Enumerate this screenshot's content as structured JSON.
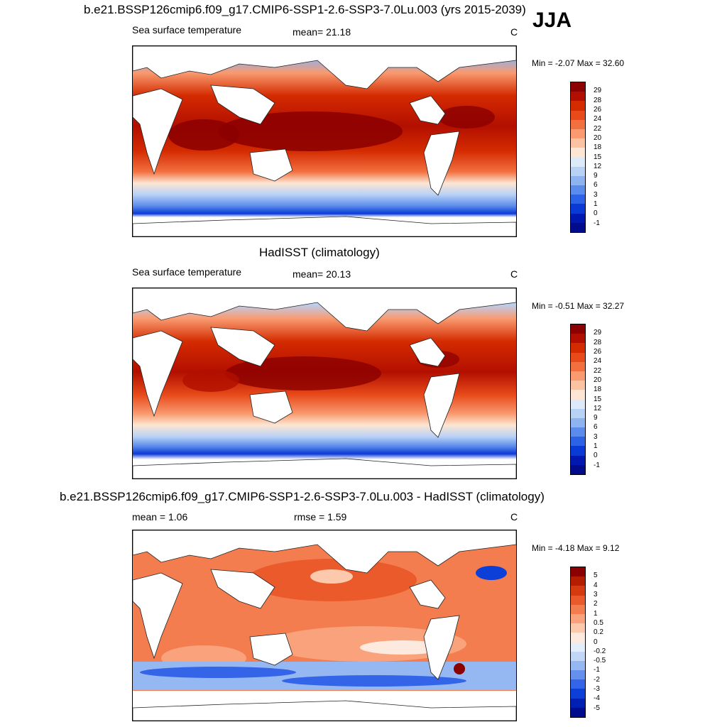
{
  "season": "JJA",
  "panels": [
    {
      "title": "b.e21.BSSP126cmip6.f09_g17.CMIP6-SSP1-2.6-SSP3-7.0Lu.003 (yrs 2015-2039)",
      "left_label": "Sea surface temperature",
      "center_label": "mean=  21.18",
      "unit": "C",
      "minmax": "Min =  -2.07 Max =  32.60",
      "colorbar_labels": [
        "29",
        "28",
        "26",
        "24",
        "22",
        "20",
        "18",
        "15",
        "12",
        "9",
        "6",
        "3",
        "1",
        "0",
        "-1"
      ],
      "colorbar_colors": [
        "#8b0000",
        "#b30f00",
        "#d42b00",
        "#e84a1a",
        "#f2703f",
        "#f99a70",
        "#fcc3a3",
        "#fde6d3",
        "#dceafa",
        "#b8d2f6",
        "#8db3f0",
        "#5b8ceb",
        "#2c62e6",
        "#0a3ad6",
        "#0018b0",
        "#000c8c"
      ]
    },
    {
      "title": "HadISST (climatology)",
      "left_label": "Sea surface temperature",
      "center_label": "mean=  20.13",
      "unit": "C",
      "minmax": "Min =  -0.51 Max =  32.27",
      "colorbar_labels": [
        "29",
        "28",
        "26",
        "24",
        "22",
        "20",
        "18",
        "15",
        "12",
        "9",
        "6",
        "3",
        "1",
        "0",
        "-1"
      ],
      "colorbar_colors": [
        "#8b0000",
        "#b30f00",
        "#d42b00",
        "#e84a1a",
        "#f2703f",
        "#f99a70",
        "#fcc3a3",
        "#fde6d3",
        "#dceafa",
        "#b8d2f6",
        "#8db3f0",
        "#5b8ceb",
        "#2c62e6",
        "#0a3ad6",
        "#0018b0",
        "#000c8c"
      ]
    },
    {
      "title": "b.e21.BSSP126cmip6.f09_g17.CMIP6-SSP1-2.6-SSP3-7.0Lu.003 - HadISST (climatology)",
      "left_label": "mean =   1.06",
      "center_label": "rmse =   1.59",
      "unit": "C",
      "minmax": "Min =  -4.18 Max =   9.12",
      "colorbar_labels": [
        "5",
        "4",
        "3",
        "2",
        "1",
        "0.5",
        "0.2",
        "0",
        "-0.2",
        "-0.5",
        "-1",
        "-2",
        "-3",
        "-4",
        "-5"
      ],
      "colorbar_colors": [
        "#8b0000",
        "#b51d00",
        "#d63a10",
        "#ea5a2a",
        "#f47d4f",
        "#f9a27c",
        "#fcc9ad",
        "#fde9de",
        "#e4eefb",
        "#c2d7f7",
        "#95b8f2",
        "#6590ed",
        "#3465e8",
        "#0c3fd8",
        "#0020b4",
        "#000c8c"
      ]
    }
  ]
}
